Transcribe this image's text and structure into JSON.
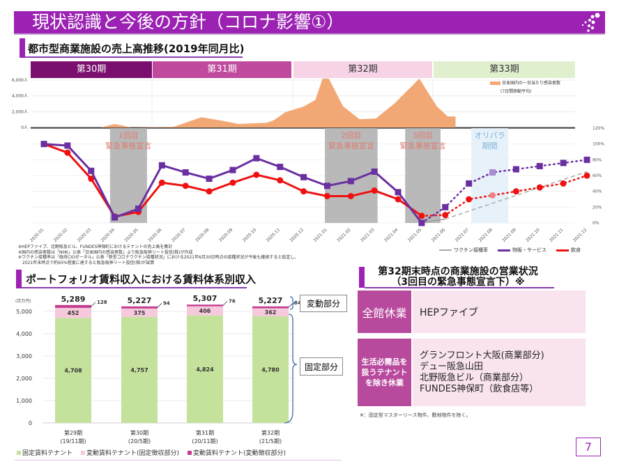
{
  "header": {
    "title": "現状認識と今後の方針（コロナ影響①）",
    "logo_icon": "dots-logo-icon"
  },
  "section1": {
    "title": "都市型商業施設の売上高推移(2019年同月比)"
  },
  "periods": [
    {
      "label": "第30期",
      "bg": "#7a0f6f",
      "fg": "#ffffff"
    },
    {
      "label": "第31期",
      "bg": "#c04a9e",
      "fg": "#ffffff"
    },
    {
      "label": "第32期",
      "bg": "#f6d4e6",
      "fg": "#333333"
    },
    {
      "label": "第33期",
      "bg": "#e0f0cf",
      "fg": "#333333"
    }
  ],
  "chart_data": [
    {
      "type": "area",
      "series": [
        {
          "name": "日本国内の一日当たり感染者数",
          "name_sub": "(7日間移動平均)",
          "color": "#f2a875",
          "points": [
            [
              "2020-01-01",
              0
            ],
            [
              "2020-03-13",
              0
            ],
            [
              "2020-04-01",
              440
            ],
            [
              "2020-04-23",
              0
            ],
            [
              "2020-06-16",
              90
            ],
            [
              "2020-07-21",
              1300
            ],
            [
              "2020-08-15",
              900
            ],
            [
              "2020-09-08",
              450
            ],
            [
              "2020-10-14",
              600
            ],
            [
              "2020-10-23",
              900
            ],
            [
              "2020-11-08",
              1950
            ],
            [
              "2020-12-01",
              2650
            ],
            [
              "2020-12-16",
              3500
            ],
            [
              "2020-12-25",
              6200
            ],
            [
              "2021-01-03",
              6200
            ],
            [
              "2021-01-21",
              2700
            ],
            [
              "2021-02-12",
              1050
            ],
            [
              "2021-03-03",
              1150
            ],
            [
              "2021-03-27",
              3100
            ],
            [
              "2021-04-17",
              5100
            ],
            [
              "2021-04-28",
              6200
            ],
            [
              "2021-05-20",
              2700
            ],
            [
              "2021-06-04",
              1400
            ],
            [
              "2021-06-14",
              1400
            ]
          ]
        }
      ],
      "y_ticks": [
        "6,000人",
        "4,000人",
        "2,000人",
        "0人"
      ],
      "y_tick_values": [
        6000,
        4000,
        2000,
        0
      ]
    },
    {
      "type": "line",
      "categories": [
        "2020.01",
        "2020.02",
        "2020.03",
        "2020.04",
        "2020.05",
        "2020.06",
        "2020.07",
        "2020.08",
        "2020.09",
        "2020.10",
        "2020.11",
        "2020.12",
        "2021.01",
        "2021.02",
        "2021.03",
        "2021.04",
        "2021.05",
        "2021.06",
        "2021.07",
        "2021.08",
        "2021.09",
        "2021.10",
        "2021.11",
        "2021.12"
      ],
      "ylim": [
        0,
        120
      ],
      "y_ticks": [
        "0%",
        "20%",
        "40%",
        "60%",
        "80%",
        "100%",
        "120%"
      ],
      "series": [
        {
          "name": "物販・サービス",
          "color": "#6a2fa0",
          "marker": "square",
          "actual": [
            100,
            98,
            66,
            7,
            18,
            73,
            64,
            56,
            67,
            82,
            71,
            58,
            47,
            53,
            65,
            39,
            0
          ],
          "forecast": [
            20,
            50,
            64,
            68,
            72,
            76,
            80
          ]
        },
        {
          "name": "飲食",
          "color": "#ee1111",
          "marker": "circle",
          "actual": [
            100,
            89,
            56,
            8,
            14,
            51,
            47,
            40,
            51,
            61,
            54,
            40,
            34,
            34,
            41,
            30,
            9
          ],
          "forecast": [
            10,
            30,
            35,
            40,
            45,
            50,
            60
          ]
        },
        {
          "name": "ワクチン接種率",
          "color": "#aaaaaa",
          "points": [
            [
              "2021.05",
              0
            ],
            [
              "2021.06",
              5
            ],
            [
              "2021.12",
              65
            ]
          ]
        }
      ],
      "bands": [
        {
          "line1": "1回目",
          "line2": "緊急事態宣言",
          "start": "2020-03-25",
          "end": "2020-05-12",
          "color": "#b9b9b9",
          "text_color": "#e07a70"
        },
        {
          "line1": "2回目",
          "line2": "緊急事態宣言",
          "start": "2020-12-28",
          "end": "2021-03-05",
          "color": "#b9b9b9",
          "text_color": "#e07a70"
        },
        {
          "line1": "3回目",
          "line2": "緊急事態宣言",
          "start": "2021-04-10",
          "end": "2021-05-25",
          "color": "#b9b9b9",
          "text_color": "#e07a70"
        },
        {
          "line1": "オリパラ",
          "line2": "期間",
          "start": "2021-07-04",
          "end": "2021-08-21",
          "color": "#e6f1fa",
          "text_color": "#7fb4d8"
        }
      ]
    },
    {
      "type": "bar",
      "stacked": true,
      "unit": "(百万円)",
      "categories": [
        [
          "第29期",
          "(19/11期)"
        ],
        [
          "第30期",
          "(20/5期)"
        ],
        [
          "第31期",
          "(20/11期)"
        ],
        [
          "第32期",
          "(21/5期)"
        ]
      ],
      "ylim": [
        0,
        5400
      ],
      "y_ticks": [
        "0",
        "1,000",
        "2,000",
        "3,000",
        "4,000",
        "5,000"
      ],
      "y_tick_values": [
        0,
        1000,
        2000,
        3000,
        4000,
        5000
      ],
      "series": [
        {
          "name": "固定賃料テナント",
          "color": "#c5e29c",
          "values": [
            4708,
            4757,
            4824,
            4780
          ],
          "labels": [
            "4,708",
            "4,757",
            "4,824",
            "4,780"
          ]
        },
        {
          "name": "変動賃料テナント(固定徴収部分)",
          "color": "#f6c9dc",
          "values": [
            452,
            375,
            406,
            362
          ],
          "labels": [
            "452",
            "375",
            "406",
            "362"
          ]
        },
        {
          "name": "変動賃料テナント(変動徴収部分)",
          "color": "#c23d8e",
          "values": [
            128,
            94,
            76,
            84
          ],
          "labels": [
            "128",
            "94",
            "76",
            "84"
          ]
        }
      ],
      "totals": [
        "5,289",
        "5,227",
        "5,307",
        "5,227"
      ],
      "brackets": {
        "variable": "変動部分",
        "fixed": "固定部分"
      }
    }
  ],
  "notes": [
    "※HEPファイブ、北野阪急ビル、FUNDES神保町におけるテナントの売上高を集計",
    "※国内の感染者数は「NHK」公表「日本国内の感染者数」より阪急阪神リート投信(株)が作成",
    "※ワクチン接種率は「政府CIOポータル」公表「新型コロナワクチン接種状況」における2021年6月30日時点の接種状況が今後も継続すると仮定し、",
    "　2021年末時点で約65%程度に達すると阪急阪神リート投信(株)が試算"
  ],
  "section2": {
    "title": "ポートフォリオ賃料収入における賃料体系別収入"
  },
  "section3": {
    "title_line1": "第32期末時点の商業施設の営業状況",
    "title_line2": "（3回目の緊急事態宣言下）※",
    "rows": [
      {
        "status": "全館休業",
        "facilities": [
          "HEPファイブ"
        ]
      },
      {
        "status": "生活必需品を扱うテナントを除き休業",
        "facilities": [
          "グランフロント大阪(商業部分)",
          "デュー阪急山田",
          "北野阪急ビル（商業部分）",
          "FUNDES神保町（飲食店等）"
        ]
      }
    ],
    "footnote": "※：固定型マスターリース物件、敷地物件を除く。"
  },
  "page_number": "7"
}
